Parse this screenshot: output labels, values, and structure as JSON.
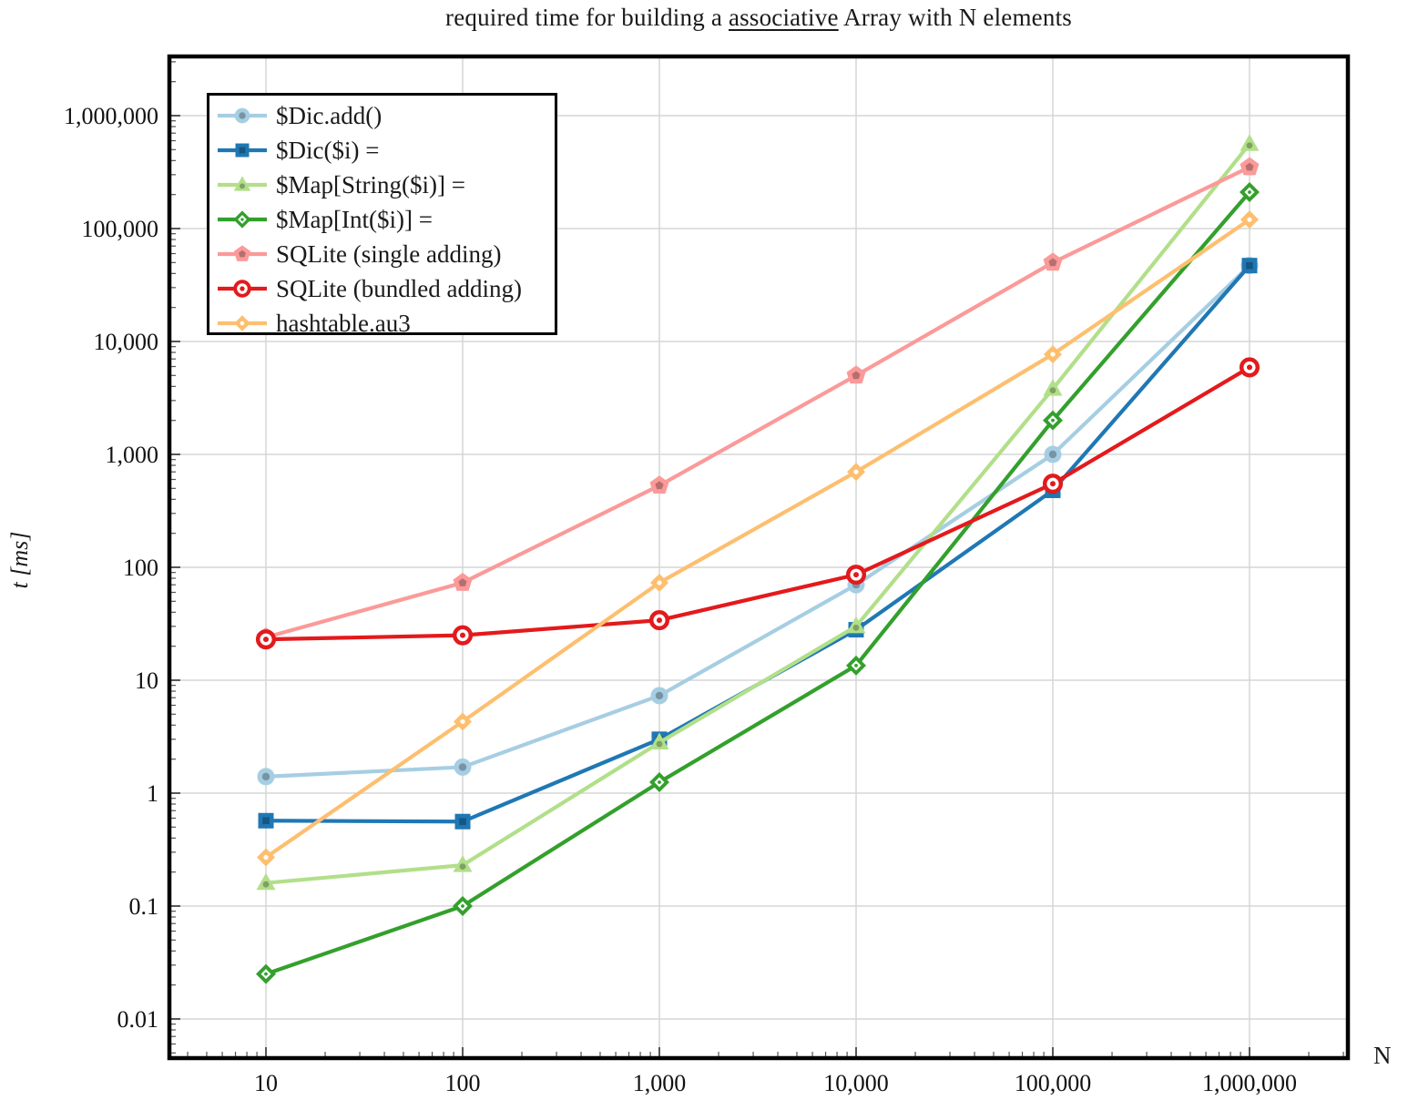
{
  "figure": {
    "title_prefix": "required time for building a ",
    "title_underlined": "associative",
    "title_suffix": " Array with N elements"
  },
  "chart_data": {
    "type": "line",
    "x_scale": "log",
    "y_scale": "log",
    "grid": true,
    "legend_position": "top-left",
    "title": "required time for building a associative Array with N elements",
    "xlabel": "N",
    "ylabel": "t [ms]",
    "xlim": [
      3.2,
      3200000
    ],
    "ylim": [
      0.0045,
      3200000
    ],
    "x": [
      10,
      100,
      1000,
      10000,
      100000,
      1000000
    ],
    "x_tick_labels": [
      "10",
      "100",
      "1,000",
      "10,000",
      "100,000",
      "1,000,000"
    ],
    "y_ticks": [
      1000000,
      100000,
      10000,
      1000,
      100,
      10,
      1,
      0.1,
      0.01
    ],
    "y_tick_labels": [
      "1,000,000",
      "100,000",
      "10,000",
      "1,000",
      "100",
      "10",
      "1",
      "0.1",
      "0.01"
    ],
    "series": [
      {
        "name": "$Dic.add()",
        "color": "#A6CEE3",
        "marker": "circle",
        "values": [
          1.4,
          1.7,
          7.3,
          70,
          1000,
          47000
        ]
      },
      {
        "name": "$Dic($i) =",
        "color": "#1F78B4",
        "marker": "square",
        "values": [
          0.57,
          0.56,
          3.0,
          28,
          480,
          47000
        ]
      },
      {
        "name": "$Map[String($i)] =",
        "color": "#B2DF8A",
        "marker": "triangle",
        "values": [
          0.16,
          0.23,
          2.8,
          30,
          3800,
          560000
        ]
      },
      {
        "name": "$Map[Int($i)] =",
        "color": "#33A02C",
        "marker": "diamond-open",
        "values": [
          0.025,
          0.1,
          1.25,
          13.5,
          2000,
          210000
        ]
      },
      {
        "name": "SQLite (single adding)",
        "color": "#FB9A99",
        "marker": "pentagon",
        "values": [
          24,
          73,
          530,
          5000,
          50000,
          350000
        ]
      },
      {
        "name": "SQLite (bundled adding)",
        "color": "#E31A1C",
        "marker": "circle-open",
        "values": [
          23,
          25,
          34,
          86,
          550,
          5900
        ]
      },
      {
        "name": "hashtable.au3",
        "color": "#FDBF6F",
        "marker": "diamond",
        "values": [
          0.27,
          4.3,
          73,
          700,
          7700,
          120000
        ]
      }
    ]
  }
}
